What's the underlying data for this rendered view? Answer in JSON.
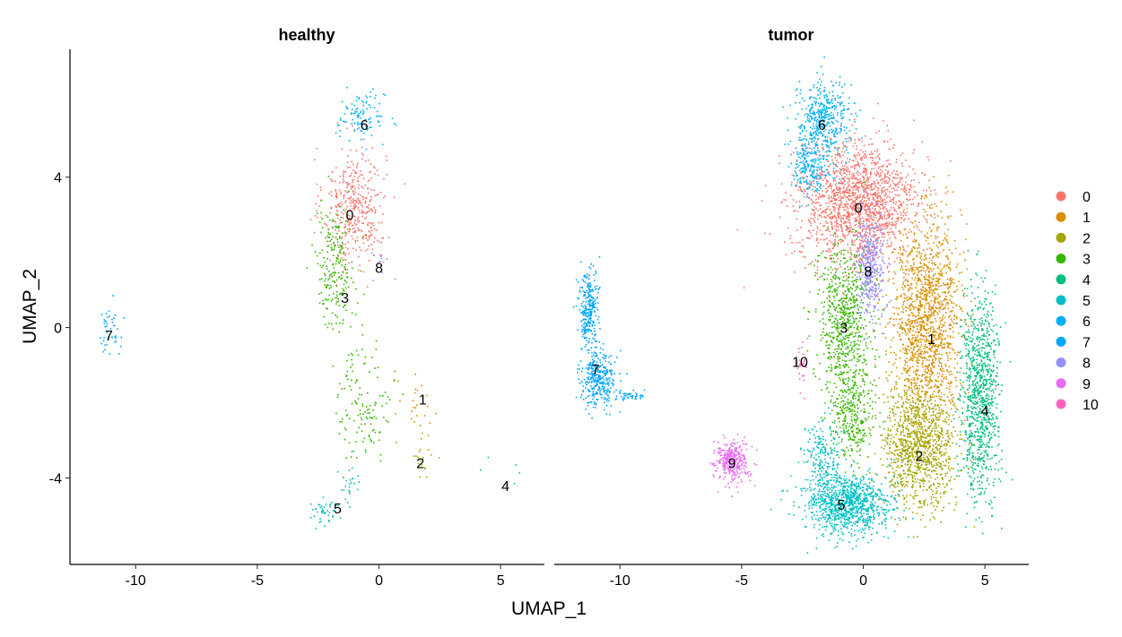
{
  "chart_data": {
    "type": "scatter",
    "xlabel": "UMAP_1",
    "ylabel": "UMAP_2",
    "xlim": [
      -12.7,
      6.8
    ],
    "ylim": [
      -6.3,
      7.4
    ],
    "x_ticks": [
      -10,
      -5,
      0,
      5
    ],
    "y_ticks": [
      -4,
      0,
      4
    ],
    "legend": {
      "position": "right",
      "entries": [
        {
          "label": "0",
          "color": "#F8766D"
        },
        {
          "label": "1",
          "color": "#D89000"
        },
        {
          "label": "2",
          "color": "#A3A500"
        },
        {
          "label": "3",
          "color": "#39B600"
        },
        {
          "label": "4",
          "color": "#00BF7D"
        },
        {
          "label": "5",
          "color": "#00BFC4"
        },
        {
          "label": "6",
          "color": "#00B0F6"
        },
        {
          "label": "7",
          "color": "#00A5FF"
        },
        {
          "label": "8",
          "color": "#9590FF"
        },
        {
          "label": "9",
          "color": "#E76BF3"
        },
        {
          "label": "10",
          "color": "#FF62BC"
        }
      ]
    },
    "facets": [
      {
        "title": "healthy",
        "clusters": [
          {
            "id": "0",
            "color": "#F8766D",
            "density": 130,
            "label_pos": [
              -1.2,
              3.0
            ],
            "regions": [
              {
                "cx": -1.0,
                "cy": 3.2,
                "sx": 0.8,
                "sy": 1.0,
                "n": 420
              }
            ]
          },
          {
            "id": "1",
            "color": "#D89000",
            "density": 14,
            "label_pos": [
              1.8,
              -1.9
            ],
            "regions": [
              {
                "cx": 1.5,
                "cy": -2.3,
                "sx": 0.6,
                "sy": 0.6,
                "n": 25
              }
            ]
          },
          {
            "id": "2",
            "color": "#A3A500",
            "density": 12,
            "label_pos": [
              1.7,
              -3.6
            ],
            "regions": [
              {
                "cx": 1.8,
                "cy": -3.4,
                "sx": 0.5,
                "sy": 0.4,
                "n": 20
              }
            ]
          },
          {
            "id": "3",
            "color": "#39B600",
            "density": 95,
            "label_pos": [
              -1.4,
              0.8
            ],
            "regions": [
              {
                "cx": -1.8,
                "cy": 1.6,
                "sx": 0.5,
                "sy": 1.0,
                "n": 220
              },
              {
                "cx": -0.6,
                "cy": -2.0,
                "sx": 0.7,
                "sy": 1.0,
                "n": 130
              }
            ]
          },
          {
            "id": "4",
            "color": "#00BF7D",
            "density": 3,
            "label_pos": [
              5.2,
              -4.2
            ],
            "regions": [
              {
                "cx": 5.1,
                "cy": -3.6,
                "sx": 0.5,
                "sy": 0.4,
                "n": 5
              }
            ]
          },
          {
            "id": "5",
            "color": "#00BFC4",
            "density": 40,
            "label_pos": [
              -1.7,
              -4.8
            ],
            "regions": [
              {
                "cx": -2.2,
                "cy": -4.9,
                "sx": 0.5,
                "sy": 0.2,
                "n": 45
              },
              {
                "cx": -1.2,
                "cy": -4.2,
                "sx": 0.3,
                "sy": 0.4,
                "n": 25
              }
            ]
          },
          {
            "id": "6",
            "color": "#00B0F6",
            "density": 45,
            "label_pos": [
              -0.6,
              5.4
            ],
            "regions": [
              {
                "cx": -0.7,
                "cy": 5.6,
                "sx": 0.6,
                "sy": 0.4,
                "n": 110
              }
            ]
          },
          {
            "id": "7",
            "color": "#00A5FF",
            "density": 15,
            "label_pos": [
              -11.1,
              -0.2
            ],
            "regions": [
              {
                "cx": -11.1,
                "cy": -0.1,
                "sx": 0.3,
                "sy": 0.5,
                "n": 45
              }
            ]
          },
          {
            "id": "8",
            "color": "#9590FF",
            "density": 5,
            "label_pos": [
              0.0,
              1.6
            ],
            "regions": [
              {
                "cx": 0.0,
                "cy": 1.5,
                "sx": 0.4,
                "sy": 0.5,
                "n": 12
              }
            ]
          }
        ]
      },
      {
        "title": "tumor",
        "clusters": [
          {
            "id": "0",
            "color": "#F8766D",
            "density": 1500,
            "label_pos": [
              -0.2,
              3.2
            ],
            "regions": [
              {
                "cx": -0.2,
                "cy": 3.3,
                "sx": 1.5,
                "sy": 1.0,
                "n": 1700
              }
            ]
          },
          {
            "id": "1",
            "color": "#D89000",
            "density": 1400,
            "label_pos": [
              2.8,
              -0.3
            ],
            "regions": [
              {
                "cx": 2.6,
                "cy": 0.2,
                "sx": 0.9,
                "sy": 1.6,
                "n": 1500
              }
            ]
          },
          {
            "id": "2",
            "color": "#A3A500",
            "density": 1000,
            "label_pos": [
              2.3,
              -3.4
            ],
            "regions": [
              {
                "cx": 2.3,
                "cy": -3.2,
                "sx": 0.9,
                "sy": 1.0,
                "n": 1100
              }
            ]
          },
          {
            "id": "3",
            "color": "#39B600",
            "density": 900,
            "label_pos": [
              -0.8,
              0.0
            ],
            "regions": [
              {
                "cx": -0.8,
                "cy": 0.2,
                "sx": 0.7,
                "sy": 1.3,
                "n": 700
              },
              {
                "cx": -0.5,
                "cy": -2.3,
                "sx": 0.6,
                "sy": 0.8,
                "n": 350
              }
            ]
          },
          {
            "id": "4",
            "color": "#00BF7D",
            "density": 900,
            "label_pos": [
              5.0,
              -2.2
            ],
            "regions": [
              {
                "cx": 4.8,
                "cy": -1.8,
                "sx": 0.5,
                "sy": 1.6,
                "n": 950
              }
            ]
          },
          {
            "id": "5",
            "color": "#00BFC4",
            "density": 1100,
            "label_pos": [
              -0.9,
              -4.7
            ],
            "regions": [
              {
                "cx": -0.7,
                "cy": -4.7,
                "sx": 1.1,
                "sy": 0.5,
                "n": 1000
              },
              {
                "cx": -1.7,
                "cy": -3.5,
                "sx": 0.5,
                "sy": 0.6,
                "n": 200
              }
            ]
          },
          {
            "id": "6",
            "color": "#00B0F6",
            "density": 650,
            "label_pos": [
              -1.7,
              5.4
            ],
            "regions": [
              {
                "cx": -1.7,
                "cy": 5.5,
                "sx": 0.7,
                "sy": 0.7,
                "n": 450
              },
              {
                "cx": -2.2,
                "cy": 4.3,
                "sx": 0.5,
                "sy": 0.5,
                "n": 220
              }
            ]
          },
          {
            "id": "7",
            "color": "#00A5FF",
            "density": 650,
            "label_pos": [
              -11.0,
              -1.1
            ],
            "regions": [
              {
                "cx": -11.3,
                "cy": 0.5,
                "sx": 0.25,
                "sy": 0.7,
                "n": 280
              },
              {
                "cx": -10.9,
                "cy": -1.4,
                "sx": 0.45,
                "sy": 0.45,
                "n": 330
              },
              {
                "cx": -9.5,
                "cy": -1.8,
                "sx": 0.4,
                "sy": 0.08,
                "n": 40
              }
            ]
          },
          {
            "id": "8",
            "color": "#9590FF",
            "density": 350,
            "label_pos": [
              0.2,
              1.5
            ],
            "regions": [
              {
                "cx": 0.3,
                "cy": 1.6,
                "sx": 0.35,
                "sy": 0.9,
                "n": 400
              }
            ]
          },
          {
            "id": "9",
            "color": "#E76BF3",
            "density": 330,
            "label_pos": [
              -5.4,
              -3.6
            ],
            "regions": [
              {
                "cx": -5.4,
                "cy": -3.6,
                "sx": 0.45,
                "sy": 0.35,
                "n": 330
              }
            ]
          },
          {
            "id": "10",
            "color": "#FF62BC",
            "density": 30,
            "label_pos": [
              -2.6,
              -0.9
            ],
            "regions": [
              {
                "cx": -2.5,
                "cy": -1.0,
                "sx": 0.15,
                "sy": 0.35,
                "n": 30
              }
            ]
          }
        ]
      }
    ]
  }
}
